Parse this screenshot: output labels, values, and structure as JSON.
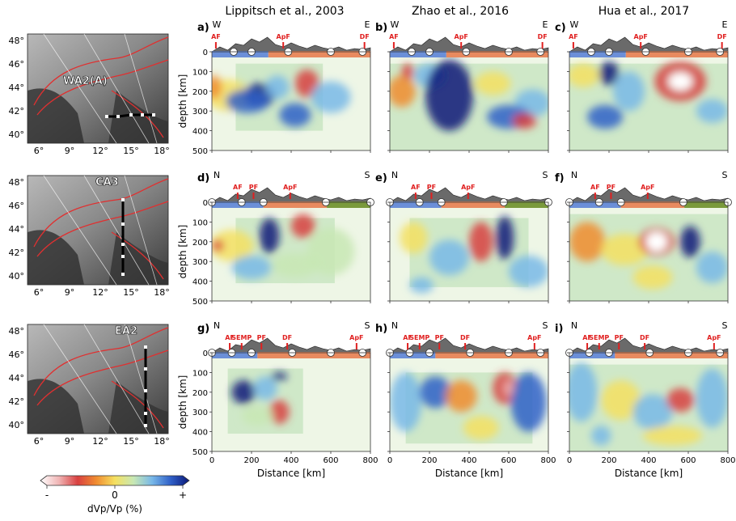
{
  "columns": [
    {
      "title": "Lippitsch et al., 2003"
    },
    {
      "title": "Zhao et al., 2016"
    },
    {
      "title": "Hua et al., 2017"
    }
  ],
  "rows": [
    {
      "map_label": "WA2(A)",
      "dir_left": "W",
      "dir_right": "E",
      "faults": [
        {
          "name": "AF",
          "pos": 20
        },
        {
          "name": "ApF",
          "pos": 360
        },
        {
          "name": "DF",
          "pos": 770
        }
      ],
      "circles": [
        110,
        200,
        385,
        600,
        760
      ],
      "bars": [
        {
          "start": 0,
          "end": 285,
          "color": "#6b8fd8"
        },
        {
          "start": 285,
          "end": 800,
          "color": "#e88a5f"
        }
      ]
    },
    {
      "map_label": "CA3",
      "dir_left": "N",
      "dir_right": "S",
      "faults": [
        {
          "name": "AF",
          "pos": 130
        },
        {
          "name": "PF",
          "pos": 210
        },
        {
          "name": "ApF",
          "pos": 395
        }
      ],
      "circles": [
        0,
        150,
        260,
        575,
        800
      ],
      "bars": [
        {
          "start": 0,
          "end": 260,
          "color": "#6b8fd8"
        },
        {
          "start": 260,
          "end": 580,
          "color": "#e88a5f"
        },
        {
          "start": 580,
          "end": 800,
          "color": "#7a9a3c"
        }
      ]
    },
    {
      "map_label": "EA2",
      "dir_left": "N",
      "dir_right": "S",
      "faults": [
        {
          "name": "AF",
          "pos": 90
        },
        {
          "name": "SEMP",
          "pos": 150
        },
        {
          "name": "PF",
          "pos": 250
        },
        {
          "name": "DF",
          "pos": 380
        },
        {
          "name": "ApF",
          "pos": 730
        }
      ],
      "circles": [
        0,
        100,
        200,
        405,
        600,
        760
      ],
      "bars": [
        {
          "start": 0,
          "end": 230,
          "color": "#6b8fd8"
        },
        {
          "start": 230,
          "end": 800,
          "color": "#e88a5f"
        }
      ]
    }
  ],
  "panels": [
    {
      "letter": "a)",
      "row": 0,
      "col": 0
    },
    {
      "letter": "b)",
      "row": 0,
      "col": 1
    },
    {
      "letter": "c)",
      "row": 0,
      "col": 2
    },
    {
      "letter": "d)",
      "row": 1,
      "col": 0
    },
    {
      "letter": "e)",
      "row": 1,
      "col": 1
    },
    {
      "letter": "f)",
      "row": 1,
      "col": 2
    },
    {
      "letter": "g)",
      "row": 2,
      "col": 0
    },
    {
      "letter": "h)",
      "row": 2,
      "col": 1
    },
    {
      "letter": "i)",
      "row": 2,
      "col": 2
    }
  ],
  "axes": {
    "ylabel": "depth [km]",
    "xlabel": "Distance [km]",
    "xticks": [
      "0",
      "200",
      "400",
      "600",
      "800"
    ],
    "yticks": [
      "0",
      "100",
      "200",
      "300",
      "400",
      "500"
    ],
    "xlim": [
      0,
      800
    ],
    "ylim": [
      0,
      500
    ]
  },
  "maps": {
    "lat_labels": [
      "48°",
      "46°",
      "44°",
      "42°",
      "40°"
    ],
    "lon_labels": [
      "6°",
      "9°",
      "12°",
      "15°",
      "18°"
    ]
  },
  "colorbar": {
    "min_label": "-",
    "mid_label": "0",
    "max_label": "+",
    "label": "dVp/Vp (%)",
    "colors": [
      "#ffffff",
      "#f0b4b4",
      "#d84040",
      "#f08c30",
      "#f5e060",
      "#c8e8b4",
      "#78b8e8",
      "#3060c8",
      "#0a1878"
    ]
  }
}
